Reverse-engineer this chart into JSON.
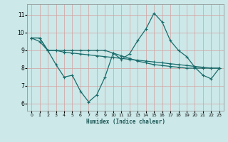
{
  "xlabel": "Humidex (Indice chaleur)",
  "bg_color": "#cce8e8",
  "grid_color": "#b0d0d0",
  "line_color": "#1a6b6b",
  "x_ticks": [
    0,
    1,
    2,
    3,
    4,
    5,
    6,
    7,
    8,
    9,
    10,
    11,
    12,
    13,
    14,
    15,
    16,
    17,
    18,
    19,
    20,
    21,
    22,
    23
  ],
  "y_ticks": [
    6,
    7,
    8,
    9,
    10,
    11
  ],
  "ylim": [
    5.6,
    11.6
  ],
  "xlim": [
    -0.5,
    23.5
  ],
  "series1_x": [
    0,
    1,
    2,
    3,
    4,
    5,
    6,
    7,
    8,
    9,
    10,
    11,
    12,
    13,
    14,
    15,
    16,
    17,
    18,
    19,
    20,
    21,
    22,
    23
  ],
  "series1_y": [
    9.7,
    9.7,
    9.0,
    8.2,
    7.5,
    7.6,
    6.7,
    6.1,
    6.5,
    7.5,
    8.85,
    8.5,
    8.8,
    9.55,
    10.2,
    11.1,
    10.6,
    9.55,
    9.0,
    8.65,
    8.05,
    7.6,
    7.4,
    8.0
  ],
  "series2_x": [
    0,
    1,
    2,
    3,
    4,
    5,
    6,
    7,
    8,
    9,
    10,
    11,
    12,
    13,
    14,
    15,
    16,
    17,
    18,
    19,
    20,
    21,
    22,
    23
  ],
  "series2_y": [
    9.7,
    9.5,
    9.0,
    9.0,
    8.9,
    8.85,
    8.8,
    8.75,
    8.7,
    8.65,
    8.6,
    8.55,
    8.5,
    8.45,
    8.4,
    8.35,
    8.3,
    8.25,
    8.2,
    8.15,
    8.1,
    8.05,
    8.0,
    8.0
  ],
  "series3_x": [
    0,
    1,
    2,
    3,
    4,
    5,
    6,
    7,
    8,
    9,
    10,
    11,
    12,
    13,
    14,
    15,
    16,
    17,
    18,
    19,
    20,
    21,
    22,
    23
  ],
  "series3_y": [
    9.7,
    9.7,
    9.0,
    9.0,
    9.0,
    9.0,
    9.0,
    9.0,
    9.0,
    9.0,
    8.85,
    8.7,
    8.55,
    8.4,
    8.3,
    8.2,
    8.15,
    8.1,
    8.05,
    8.0,
    8.0,
    8.0,
    8.0,
    8.0
  ]
}
